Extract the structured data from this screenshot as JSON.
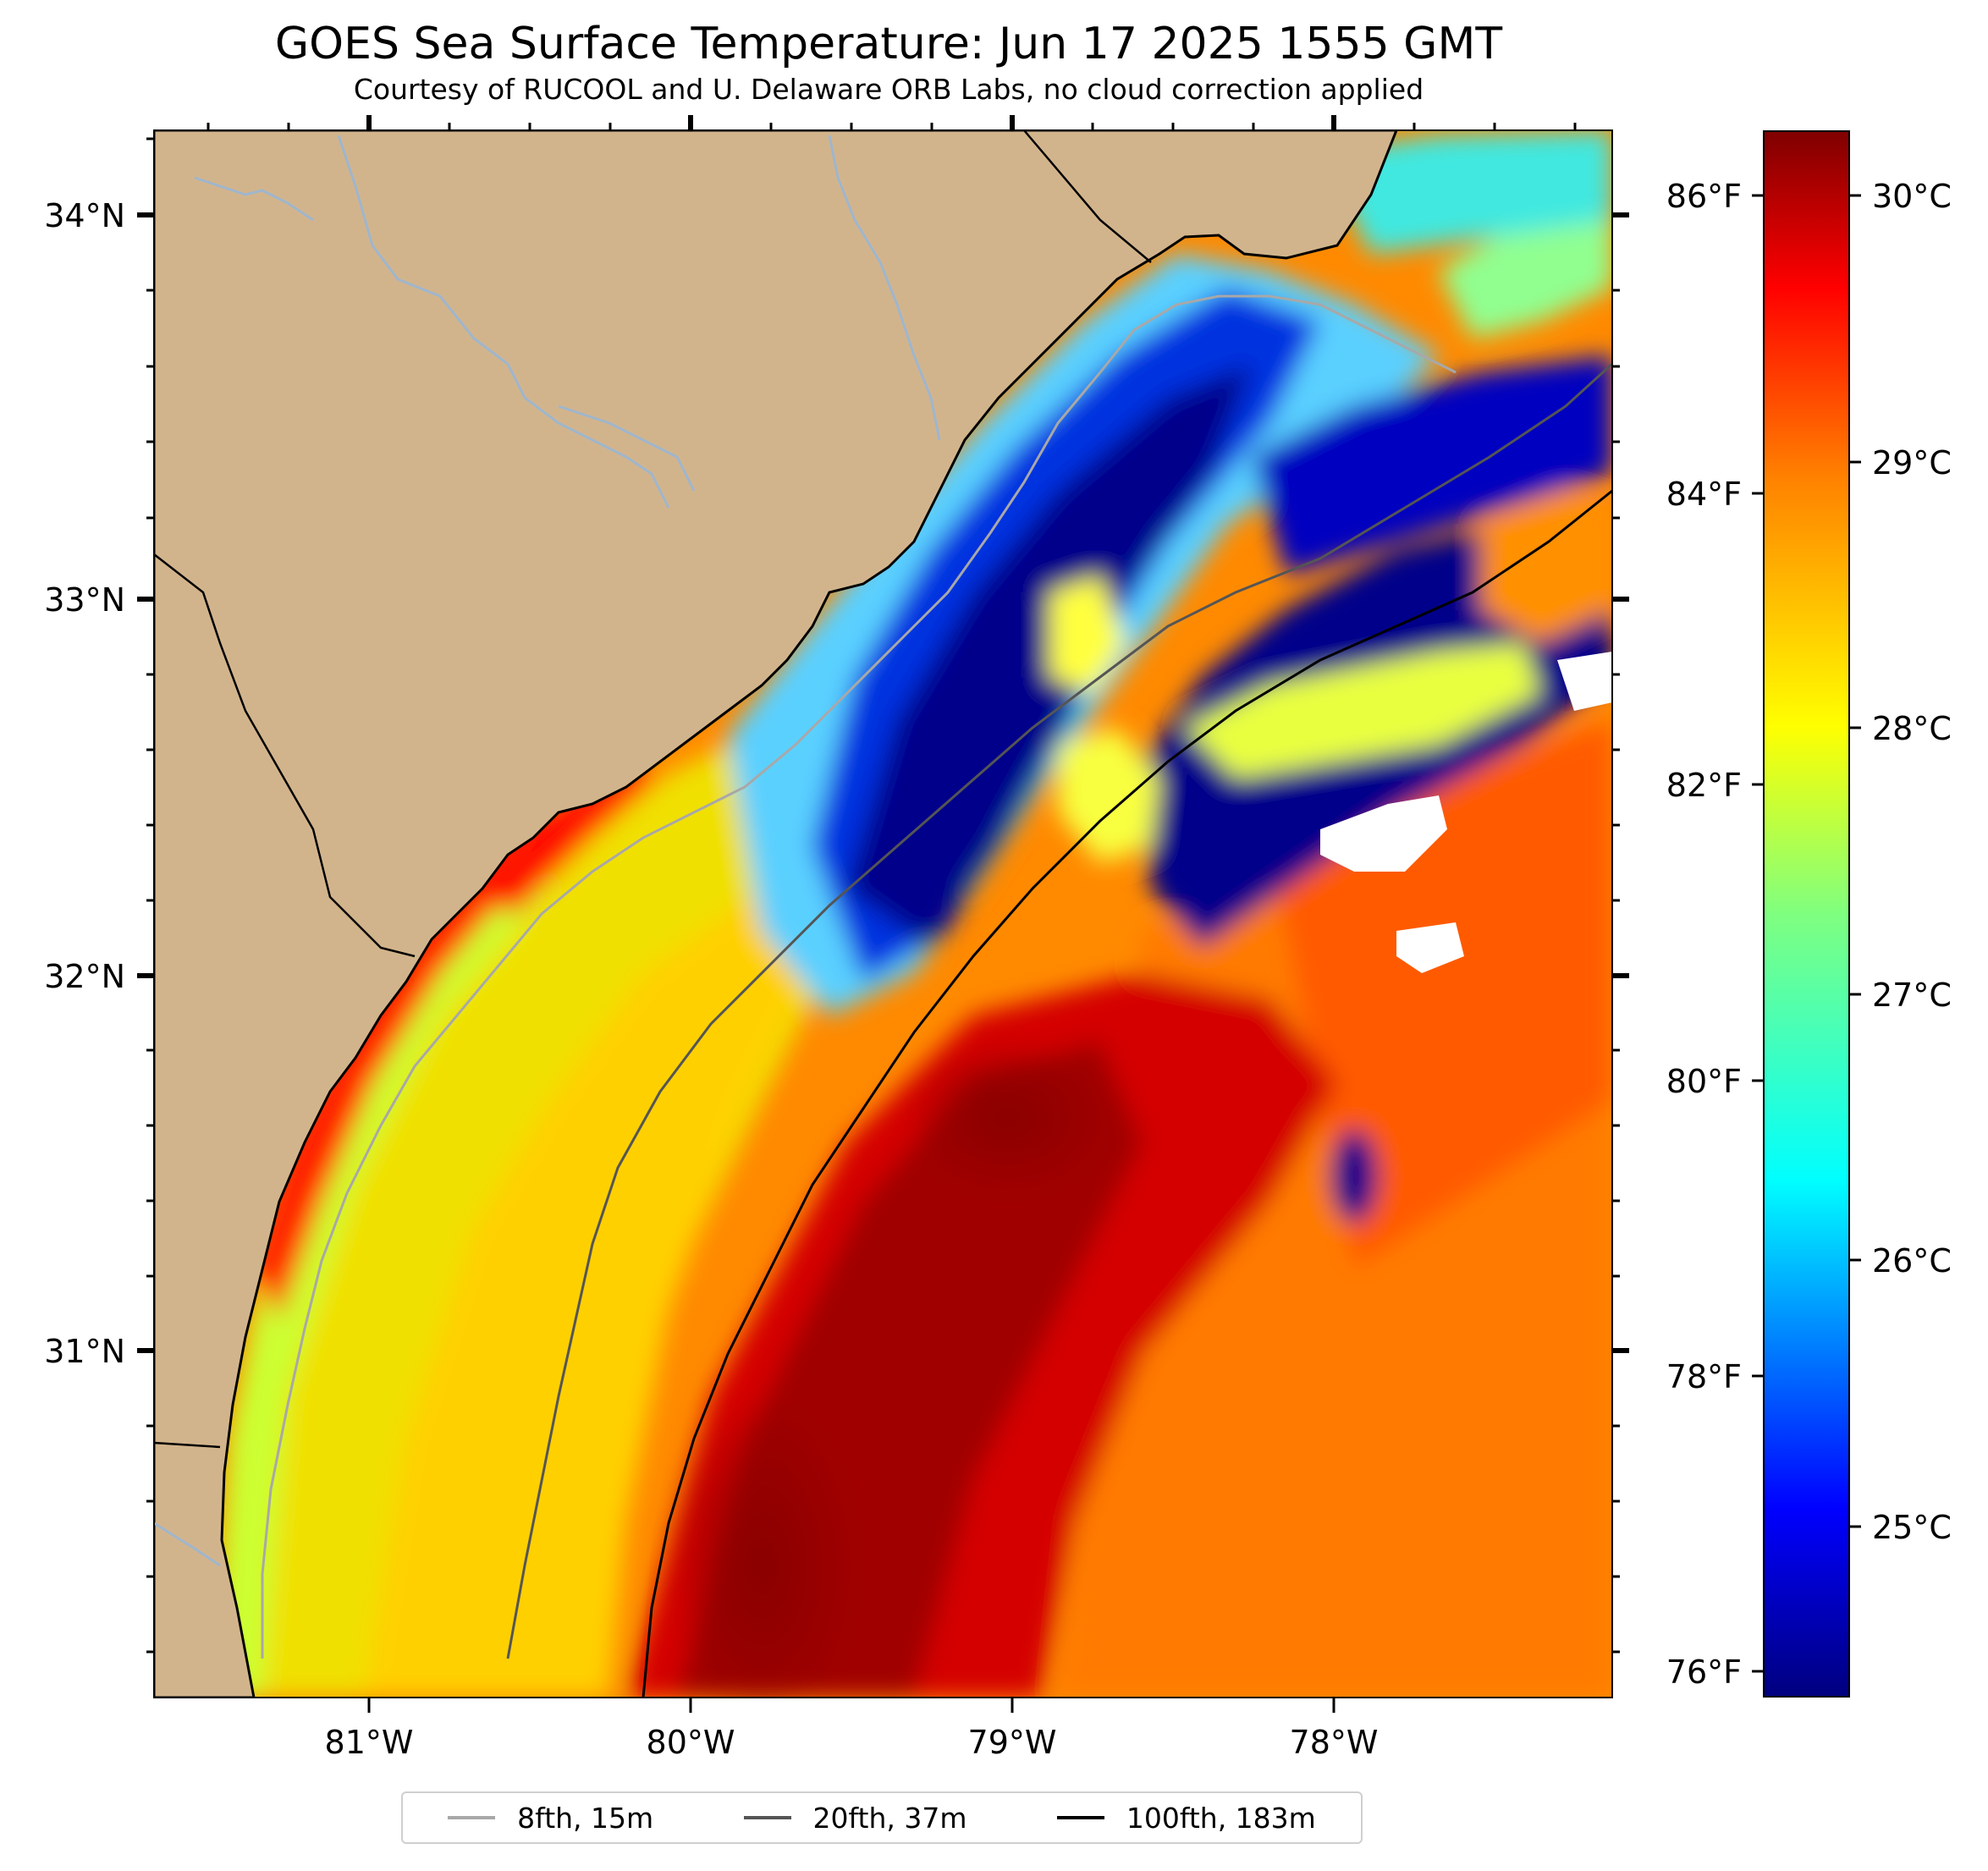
{
  "title": "GOES Sea Surface Temperature: Jun 17 2025 1555 GMT",
  "subtitle": "Courtesy of RUCOOL and U. Delaware ORB Labs, no cloud correction applied",
  "axes": {
    "lon_labels": [
      "81°W",
      "80°W",
      "79°W",
      "78°W"
    ],
    "lat_labels": [
      "34°N",
      "33°N",
      "32°N",
      "31°N"
    ]
  },
  "colorbar": {
    "celsius_labels": [
      "30°C",
      "29°C",
      "28°C",
      "27°C",
      "26°C",
      "25°C"
    ],
    "fahrenheit_labels": [
      "86°F",
      "84°F",
      "82°F",
      "80°F",
      "78°F",
      "76°F"
    ]
  },
  "legend": [
    {
      "label": "8fth, 15m",
      "color": "#a8a8a8"
    },
    {
      "label": "20fth, 37m",
      "color": "#555555"
    },
    {
      "label": "100fth, 183m",
      "color": "#000000"
    }
  ],
  "colors": {
    "land": "#d2b48c",
    "rivers": "#9fb6cd"
  }
}
